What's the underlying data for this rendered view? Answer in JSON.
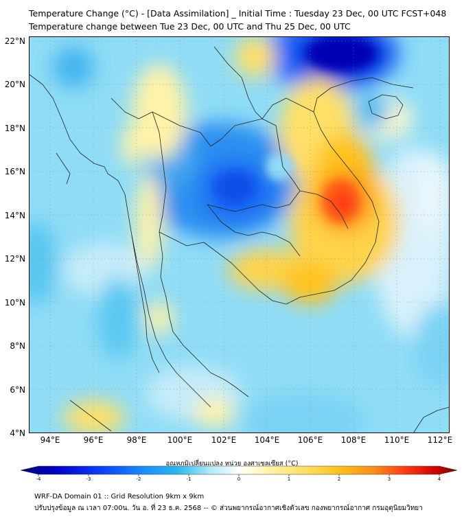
{
  "title": {
    "line1": "Temperature Change (°C) - [Data Assimilation] _ Initial Time : Tuesday 23 Dec, 00 UTC FCST+048",
    "line2": "Temperature change between Tue 23 Dec, 00 UTC and Thu 25 Dec, 00 UTC"
  },
  "axes": {
    "lat_labels": [
      "22°N",
      "20°N",
      "18°N",
      "16°N",
      "14°N",
      "12°N",
      "10°N",
      "8°N",
      "6°N",
      "4°N"
    ],
    "lon_labels": [
      "94°E",
      "96°E",
      "98°E",
      "100°E",
      "102°E",
      "104°E",
      "106°E",
      "108°E",
      "110°E",
      "112°E"
    ],
    "lat_range": [
      4,
      22.3
    ],
    "lon_range": [
      93,
      112.4
    ]
  },
  "colorbar": {
    "title": "อุณหภูมิเปลี่ยนแปลง หน่วย องศาเซลเซียส (°C)",
    "tick_labels": [
      "-4",
      "-3",
      "-2",
      "-1",
      "0",
      "1",
      "2",
      "3",
      "4"
    ],
    "range": [
      -4,
      4
    ],
    "colors": [
      "#00007a",
      "#0000c8",
      "#0a3cff",
      "#1a8cff",
      "#2ab8f0",
      "#5fd2f5",
      "#a8e8f8",
      "#ffffff",
      "#fff3a8",
      "#ffe066",
      "#ffc21a",
      "#ff8c1a",
      "#ff3c14",
      "#d20000",
      "#7a0000"
    ]
  },
  "footer": {
    "line1": "WRF-DA Domain 01 :: Grid Resolution 9km x 9km",
    "line2": "ปรับปรุงข้อมูล ณ เวลา 07:00น. วัน อ. ที่ 23 ธ.ค. 2568 -- © ส่วนพยากรณ์อากาศเชิงตัวเลข กองพยากรณ์อากาศ กรมอุตุนิยมวิทยา"
  }
}
